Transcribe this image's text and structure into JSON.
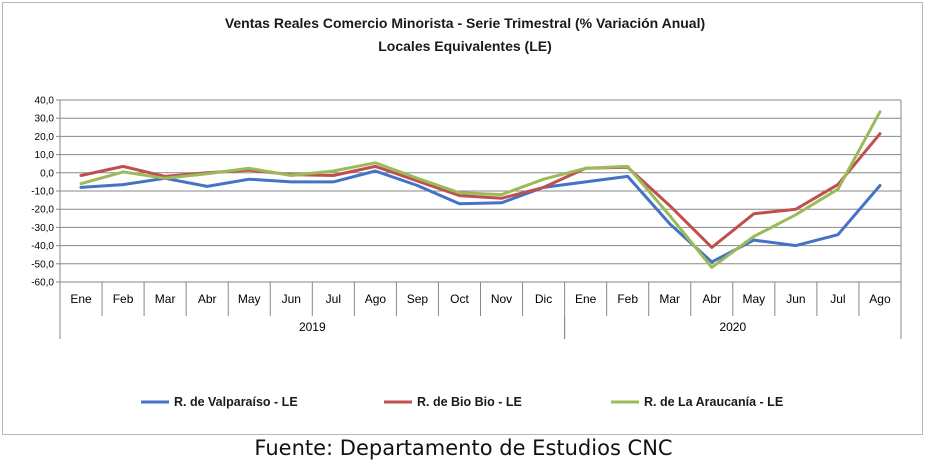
{
  "chart_data": {
    "type": "line",
    "title_line1": "Ventas Reales Comercio Minorista - Serie Trimestral (% Variación Anual)",
    "title_line2": "Locales Equivalentes (LE)",
    "categories": [
      "Ene",
      "Feb",
      "Mar",
      "Abr",
      "May",
      "Jun",
      "Jul",
      "Ago",
      "Sep",
      "Oct",
      "Nov",
      "Dic",
      "Ene",
      "Feb",
      "Mar",
      "Abr",
      "May",
      "Jun",
      "Jul",
      "Ago"
    ],
    "year_groups": [
      {
        "label": "2019",
        "start": 0,
        "end": 11
      },
      {
        "label": "2020",
        "start": 12,
        "end": 19
      }
    ],
    "yticks": [
      "40,0",
      "30,0",
      "20,0",
      "10,0",
      "0,0",
      "-10,0",
      "-20,0",
      "-30,0",
      "-40,0",
      "-50,0",
      "-60,0"
    ],
    "ylim": [
      -60,
      40
    ],
    "grid": true,
    "legend_position": "bottom",
    "series": [
      {
        "name": "R. de Valparaíso - LE",
        "color": "#4472c4",
        "values": [
          -8,
          -6.5,
          -3,
          -7.5,
          -3.5,
          -5,
          -5,
          1,
          -7,
          -17,
          -16.5,
          -8,
          -5,
          -2,
          -28,
          -49,
          -37,
          -40,
          -34,
          -7
        ]
      },
      {
        "name": "R. de Bio Bio - LE",
        "color": "#c0504d",
        "values": [
          -1.5,
          3.5,
          -2,
          0,
          1.5,
          -1,
          -1.5,
          3.5,
          -4.5,
          -12.5,
          -14,
          -8,
          2.5,
          3,
          -18,
          -41,
          -22.5,
          -20,
          -6.5,
          21.5
        ]
      },
      {
        "name": "R. de La Araucanía - LE",
        "color": "#9bbb59",
        "values": [
          -6,
          0.5,
          -3,
          -0.5,
          2.5,
          -1.5,
          1,
          5.5,
          -3,
          -11,
          -12,
          -3.5,
          2.5,
          3.5,
          -23.5,
          -52,
          -35,
          -23,
          -9,
          33.5
        ]
      }
    ]
  },
  "source_text": "Fuente: Departamento de Estudios CNC"
}
